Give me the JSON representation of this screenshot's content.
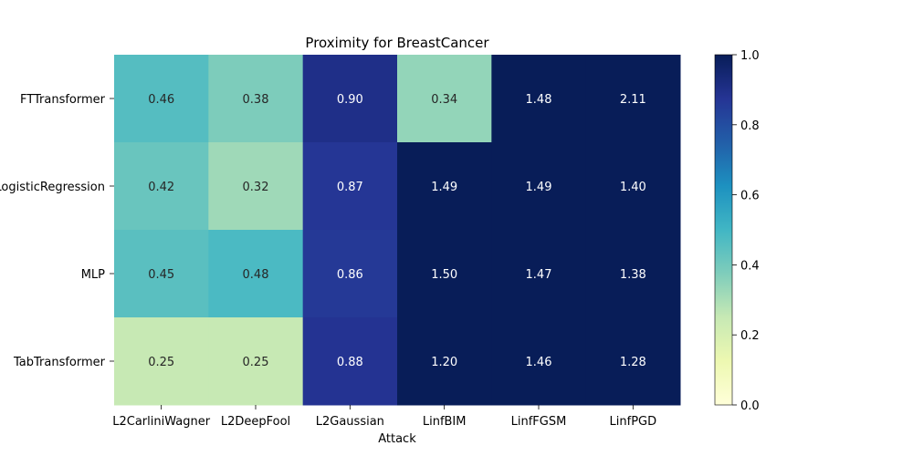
{
  "chart_data": {
    "type": "heatmap",
    "title": "Proximity for BreastCancer",
    "xlabel": "Attack",
    "ylabel": "",
    "x_categories": [
      "L2CarliniWagner",
      "L2DeepFool",
      "L2Gaussian",
      "LinfBIM",
      "LinfFGSM",
      "LinfPGD"
    ],
    "y_categories": [
      "FTTransformer",
      "LogisticRegression",
      "MLP",
      "TabTransformer"
    ],
    "values": [
      [
        0.46,
        0.38,
        0.9,
        0.34,
        1.48,
        2.11
      ],
      [
        0.42,
        0.32,
        0.87,
        1.49,
        1.49,
        1.4
      ],
      [
        0.45,
        0.48,
        0.86,
        1.5,
        1.47,
        1.38
      ],
      [
        0.25,
        0.25,
        0.88,
        1.2,
        1.46,
        1.28
      ]
    ],
    "value_format": "0.00",
    "colormap": "YlGnBu",
    "color_range": [
      0.0,
      1.0
    ],
    "colorbar_ticks": [
      "0.0",
      "0.2",
      "0.4",
      "0.6",
      "0.8",
      "1.0"
    ],
    "colorbar_tick_values": [
      0.0,
      0.2,
      0.4,
      0.6,
      0.8,
      1.0
    ],
    "grid": false,
    "legend": "colorbar-right"
  }
}
